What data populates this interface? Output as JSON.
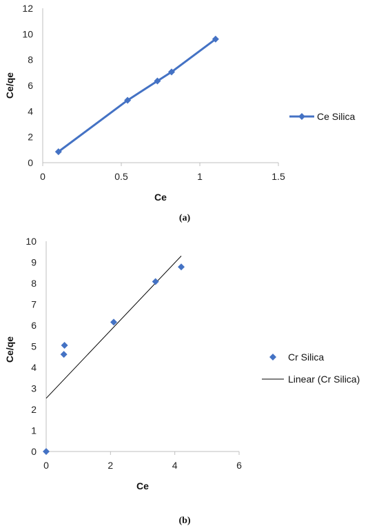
{
  "chart_data": [
    {
      "type": "line",
      "caption": "(a)",
      "xlabel": "Ce",
      "ylabel": "Ce/qe",
      "xlim": [
        0,
        1.5
      ],
      "ylim": [
        0,
        12
      ],
      "x_ticks": [
        "0",
        "0.5",
        "1",
        "1.5"
      ],
      "y_ticks": [
        "0",
        "2",
        "4",
        "6",
        "8",
        "10",
        "12"
      ],
      "legend_position": "right",
      "grid": false,
      "series": [
        {
          "name": "Ce Silica",
          "color": "#4472C4",
          "marker": "diamond",
          "x": [
            0.1,
            0.54,
            0.73,
            0.82,
            1.1
          ],
          "y": [
            0.85,
            4.85,
            6.35,
            7.05,
            9.6
          ]
        }
      ]
    },
    {
      "type": "scatter",
      "caption": "(b)",
      "xlabel": "Ce",
      "ylabel": "Ce/qe",
      "xlim": [
        0,
        6
      ],
      "ylim": [
        0,
        10
      ],
      "x_ticks": [
        "0",
        "2",
        "4",
        "6"
      ],
      "y_ticks": [
        "0",
        "1",
        "2",
        "3",
        "4",
        "5",
        "6",
        "7",
        "8",
        "9",
        "10"
      ],
      "legend_position": "right",
      "grid": false,
      "series": [
        {
          "name": "Cr Silica",
          "color": "#4472C4",
          "marker": "diamond",
          "x": [
            0,
            0.55,
            0.57,
            2.1,
            3.4,
            4.2
          ],
          "y": [
            0,
            4.62,
            5.05,
            6.15,
            8.08,
            8.78
          ]
        }
      ],
      "trendline": {
        "name": "Linear (Cr Silica)",
        "color": "#000000",
        "x": [
          0,
          4.2
        ],
        "y": [
          2.53,
          9.3
        ]
      }
    }
  ]
}
